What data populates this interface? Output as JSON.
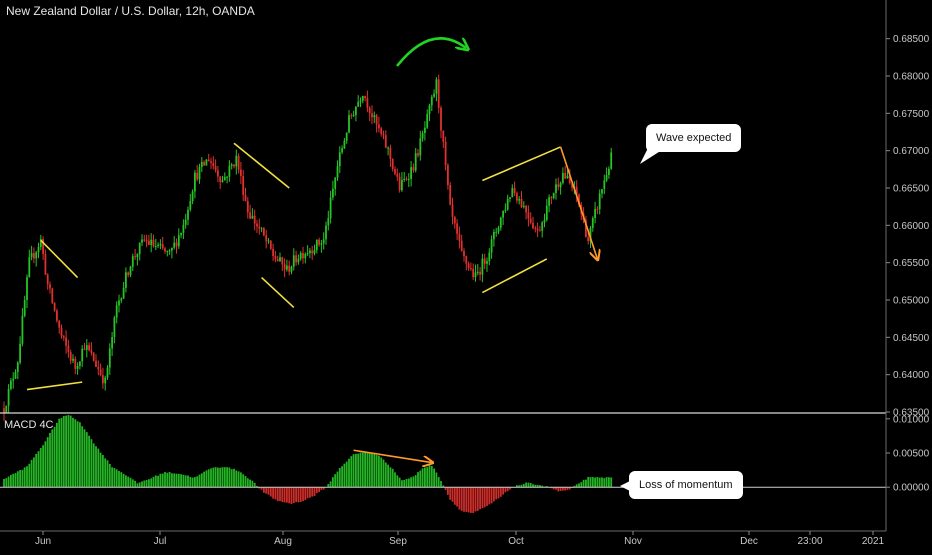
{
  "header": {
    "title": "New Zealand Dollar / U.S. Dollar, 12h, OANDA",
    "macd_label": "MACD 4C"
  },
  "annotations": {
    "wave": "Wave expected",
    "momentum": "Loss of momentum"
  },
  "colors": {
    "up": "#26c526",
    "down": "#e0312e",
    "pattern": "#f0e040",
    "projection": "#ff9a2e",
    "arc": "#22d422",
    "background": "#000000"
  },
  "chart_data": [
    {
      "type": "candlestick",
      "title": "New Zealand Dollar / U.S. Dollar, 12h, OANDA",
      "x_ticks": [
        "Jun",
        "Jul",
        "Aug",
        "Sep",
        "Oct",
        "Nov",
        "Dec",
        "23:00",
        "2021"
      ],
      "y_ticks": [
        "0.63500",
        "0.64000",
        "0.64500",
        "0.65000",
        "0.65500",
        "0.66000",
        "0.66500",
        "0.67000",
        "0.67500",
        "0.68000",
        "0.68500"
      ],
      "ylim": [
        0.635,
        0.6875
      ],
      "waypoints": [
        [
          0,
          0.6355
        ],
        [
          6,
          0.642
        ],
        [
          11,
          0.655
        ],
        [
          16,
          0.658
        ],
        [
          19,
          0.652
        ],
        [
          25,
          0.645
        ],
        [
          31,
          0.641
        ],
        [
          35,
          0.644
        ],
        [
          39,
          0.642
        ],
        [
          44,
          0.639
        ],
        [
          49,
          0.649
        ],
        [
          55,
          0.655
        ],
        [
          61,
          0.658
        ],
        [
          67,
          0.657
        ],
        [
          72,
          0.656
        ],
        [
          78,
          0.66
        ],
        [
          83,
          0.6665
        ],
        [
          89,
          0.669
        ],
        [
          95,
          0.666
        ],
        [
          101,
          0.669
        ],
        [
          106,
          0.662
        ],
        [
          112,
          0.659
        ],
        [
          117,
          0.656
        ],
        [
          123,
          0.654
        ],
        [
          128,
          0.656
        ],
        [
          134,
          0.657
        ],
        [
          139,
          0.658
        ],
        [
          145,
          0.668
        ],
        [
          150,
          0.674
        ],
        [
          156,
          0.678
        ],
        [
          161,
          0.674
        ],
        [
          167,
          0.67
        ],
        [
          172,
          0.665
        ],
        [
          178,
          0.668
        ],
        [
          183,
          0.673
        ],
        [
          188,
          0.679
        ],
        [
          194,
          0.662
        ],
        [
          199,
          0.656
        ],
        [
          205,
          0.653
        ],
        [
          210,
          0.656
        ],
        [
          216,
          0.661
        ],
        [
          221,
          0.665
        ],
        [
          227,
          0.662
        ],
        [
          232,
          0.659
        ],
        [
          238,
          0.664
        ],
        [
          243,
          0.667
        ],
        [
          249,
          0.664
        ],
        [
          254,
          0.658
        ],
        [
          260,
          0.665
        ],
        [
          264,
          0.669
        ]
      ],
      "patterns": [
        {
          "name": "triangle-june",
          "lines": [
            [
              [
                16,
                0.658
              ],
              [
                32,
                0.653
              ]
            ],
            [
              [
                10,
                0.638
              ],
              [
                34,
                0.639
              ]
            ]
          ]
        },
        {
          "name": "flag-august",
          "lines": [
            [
              [
                100,
                0.671
              ],
              [
                124,
                0.665
              ]
            ],
            [
              [
                112,
                0.653
              ],
              [
                126,
                0.649
              ]
            ]
          ]
        },
        {
          "name": "wedge-october",
          "lines": [
            [
              [
                208,
                0.651
              ],
              [
                236,
                0.6555
              ]
            ],
            [
              [
                208,
                0.666
              ],
              [
                242,
                0.6705
              ]
            ]
          ]
        }
      ],
      "projection": [
        [
          242,
          0.6705
        ],
        [
          258,
          0.6555
        ]
      ]
    },
    {
      "type": "bar",
      "title": "MACD 4C",
      "y_ticks": [
        "0.01000",
        "0.00500",
        "0.00000"
      ],
      "ylim": [
        -0.0045,
        0.0107
      ],
      "waypoints": [
        [
          0,
          0.0012
        ],
        [
          10,
          0.003
        ],
        [
          17,
          0.0062
        ],
        [
          24,
          0.01
        ],
        [
          28,
          0.0106
        ],
        [
          33,
          0.0095
        ],
        [
          40,
          0.006
        ],
        [
          47,
          0.003
        ],
        [
          53,
          0.0018
        ],
        [
          58,
          0.0006
        ],
        [
          63,
          0.0012
        ],
        [
          70,
          0.0022
        ],
        [
          76,
          0.002
        ],
        [
          83,
          0.0014
        ],
        [
          90,
          0.0028
        ],
        [
          96,
          0.003
        ],
        [
          102,
          0.0024
        ],
        [
          108,
          0.0009
        ],
        [
          113,
          -0.0008
        ],
        [
          119,
          -0.002
        ],
        [
          125,
          -0.0024
        ],
        [
          130,
          -0.002
        ],
        [
          135,
          -0.0012
        ],
        [
          140,
          0.0
        ],
        [
          146,
          0.0028
        ],
        [
          152,
          0.0048
        ],
        [
          158,
          0.0052
        ],
        [
          164,
          0.0044
        ],
        [
          168,
          0.003
        ],
        [
          173,
          0.001
        ],
        [
          178,
          0.0015
        ],
        [
          182,
          0.0028
        ],
        [
          186,
          0.0032
        ],
        [
          190,
          0.001
        ],
        [
          194,
          -0.0018
        ],
        [
          199,
          -0.0035
        ],
        [
          204,
          -0.0038
        ],
        [
          210,
          -0.0028
        ],
        [
          216,
          -0.0014
        ],
        [
          221,
          0.0
        ],
        [
          227,
          0.0006
        ],
        [
          232,
          0.0004
        ],
        [
          237,
          0.0
        ],
        [
          241,
          -0.0006
        ],
        [
          246,
          -0.0004
        ],
        [
          250,
          0.0006
        ],
        [
          254,
          0.0014
        ]
      ],
      "divergence_line": [
        [
          152,
          0.0054
        ],
        [
          186,
          0.0036
        ]
      ]
    }
  ]
}
